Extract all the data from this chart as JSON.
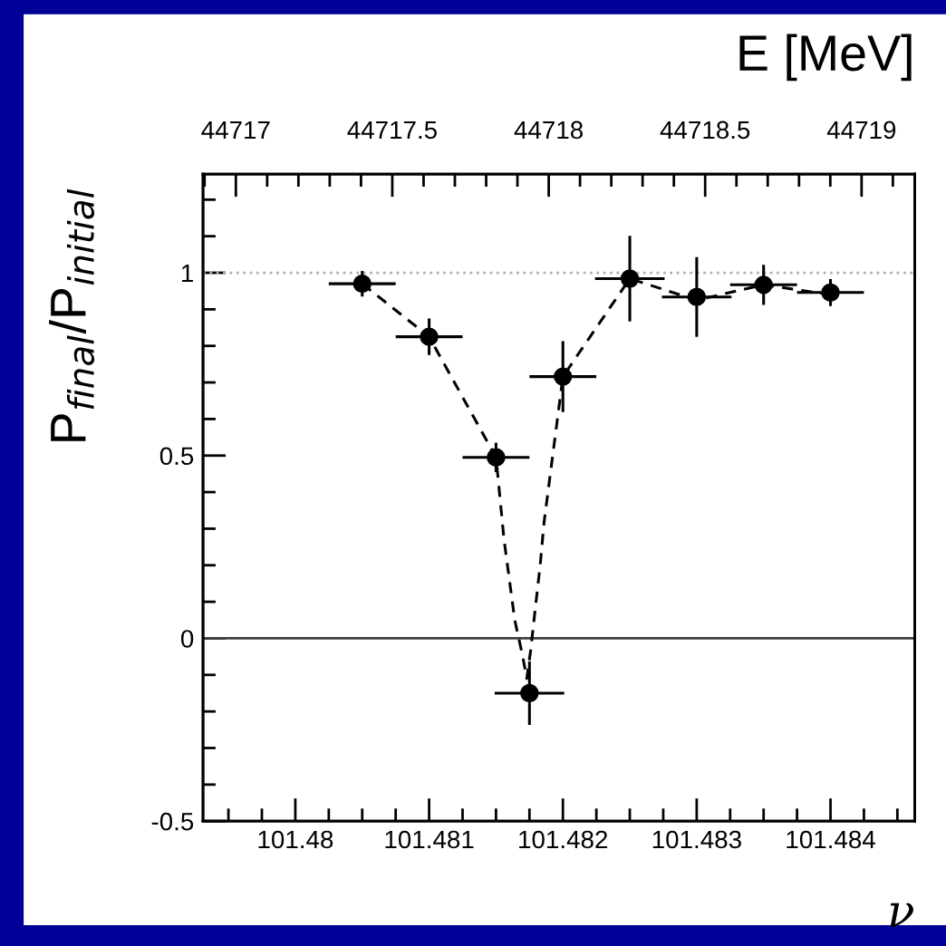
{
  "chart_data": {
    "type": "scatter",
    "ylabel": "P$_{final}$/P$_{initial}$",
    "xlabel": "ν",
    "x2label": "E [MeV]",
    "xlim": [
      101.47931,
      101.48463
    ],
    "ylim": [
      -0.5,
      1.27
    ],
    "x2lim": [
      44716.895,
      44719.17
    ],
    "xticks": [
      {
        "value": 101.4795,
        "label": null
      },
      {
        "value": 101.47975,
        "label": null
      },
      {
        "value": 101.48,
        "label": "101.48"
      },
      {
        "value": 101.48025,
        "label": null
      },
      {
        "value": 101.4805,
        "label": null
      },
      {
        "value": 101.48075,
        "label": null
      },
      {
        "value": 101.481,
        "label": "101.481"
      },
      {
        "value": 101.48125,
        "label": null
      },
      {
        "value": 101.4815,
        "label": null
      },
      {
        "value": 101.48175,
        "label": null
      },
      {
        "value": 101.482,
        "label": "101.482"
      },
      {
        "value": 101.48225,
        "label": null
      },
      {
        "value": 101.4825,
        "label": null
      },
      {
        "value": 101.48275,
        "label": null
      },
      {
        "value": 101.483,
        "label": "101.483"
      },
      {
        "value": 101.48325,
        "label": null
      },
      {
        "value": 101.4835,
        "label": null
      },
      {
        "value": 101.48375,
        "label": null
      },
      {
        "value": 101.484,
        "label": "101.484"
      },
      {
        "value": 101.48425,
        "label": null
      },
      {
        "value": 101.4845,
        "label": null
      }
    ],
    "x2ticks": [
      {
        "value": 44716.9,
        "label": null
      },
      44717,
      {
        "value": 44717.1,
        "label": null
      },
      {
        "value": 44717.2,
        "label": null
      },
      {
        "value": 44717.3,
        "label": null
      },
      {
        "value": 44717.4,
        "label": null
      },
      44717.5,
      {
        "value": 44717.6,
        "label": null
      },
      {
        "value": 44717.7,
        "label": null
      },
      {
        "value": 44717.8,
        "label": null
      },
      {
        "value": 44717.9,
        "label": null
      },
      44718,
      {
        "value": 44718.1,
        "label": null
      },
      {
        "value": 44718.2,
        "label": null
      },
      {
        "value": 44718.3,
        "label": null
      },
      {
        "value": 44718.4,
        "label": null
      },
      44718.5,
      {
        "value": 44718.6,
        "label": null
      },
      {
        "value": 44718.7,
        "label": null
      },
      {
        "value": 44718.8,
        "label": null
      },
      {
        "value": 44718.9,
        "label": null
      },
      44719,
      {
        "value": 44719.1,
        "label": null
      }
    ],
    "yticks": [
      {
        "value": -0.5,
        "label": "-0.5"
      },
      {
        "value": -0.4,
        "label": null
      },
      {
        "value": -0.3,
        "label": null
      },
      {
        "value": -0.2,
        "label": null
      },
      {
        "value": -0.1,
        "label": null
      },
      0,
      {
        "value": 0.1,
        "label": null
      },
      {
        "value": 0.2,
        "label": null
      },
      {
        "value": 0.3,
        "label": null
      },
      {
        "value": 0.4,
        "label": null
      },
      0.5,
      {
        "value": 0.6,
        "label": null
      },
      {
        "value": 0.7,
        "label": null
      },
      {
        "value": 0.8,
        "label": null
      },
      {
        "value": 0.9,
        "label": null
      },
      1,
      {
        "value": 1.1,
        "label": null
      },
      {
        "value": 1.2,
        "label": null
      }
    ],
    "ref_lines": [
      {
        "axis": "y",
        "value": 1,
        "color": "#b0b0b0",
        "line_style": "dotted"
      },
      {
        "axis": "y",
        "value": 0,
        "color": "#404040",
        "line_style": "solid"
      }
    ],
    "grid": false,
    "legend": false,
    "series": [
      {
        "type": "line",
        "color": "#000000",
        "line_style": "dashed",
        "marker": "none",
        "x": [
          101.4805,
          101.481,
          101.4815,
          101.48156,
          101.48164,
          101.4817,
          101.48173,
          101.48176,
          101.48179,
          101.48183,
          101.48186,
          101.482,
          101.4825,
          101.483,
          101.4835,
          101.484
        ],
        "values": [
          0.97,
          0.825,
          0.495,
          0.27,
          0.05,
          -0.05,
          -0.11,
          -0.03,
          0.07,
          0.2,
          0.32,
          0.716,
          0.984,
          0.925,
          0.967,
          0.94
        ]
      },
      {
        "color": "#000000",
        "marker": "circle",
        "x": [
          101.4805,
          101.481,
          101.4815,
          101.48175,
          101.482,
          101.4825,
          101.483,
          101.4835,
          101.484
        ],
        "values": [
          0.97,
          0.825,
          0.495,
          -0.15,
          0.716,
          0.984,
          0.934,
          0.967,
          0.946
        ],
        "errors": [
          0.035,
          0.05,
          0.04,
          0.087,
          0.097,
          0.117,
          0.109,
          0.055,
          0.037
        ],
        "xerrors": [
          0.00025,
          0.00025,
          0.00025,
          0.00026,
          0.00025,
          0.00026,
          0.00026,
          0.00025,
          0.00025
        ]
      }
    ]
  }
}
